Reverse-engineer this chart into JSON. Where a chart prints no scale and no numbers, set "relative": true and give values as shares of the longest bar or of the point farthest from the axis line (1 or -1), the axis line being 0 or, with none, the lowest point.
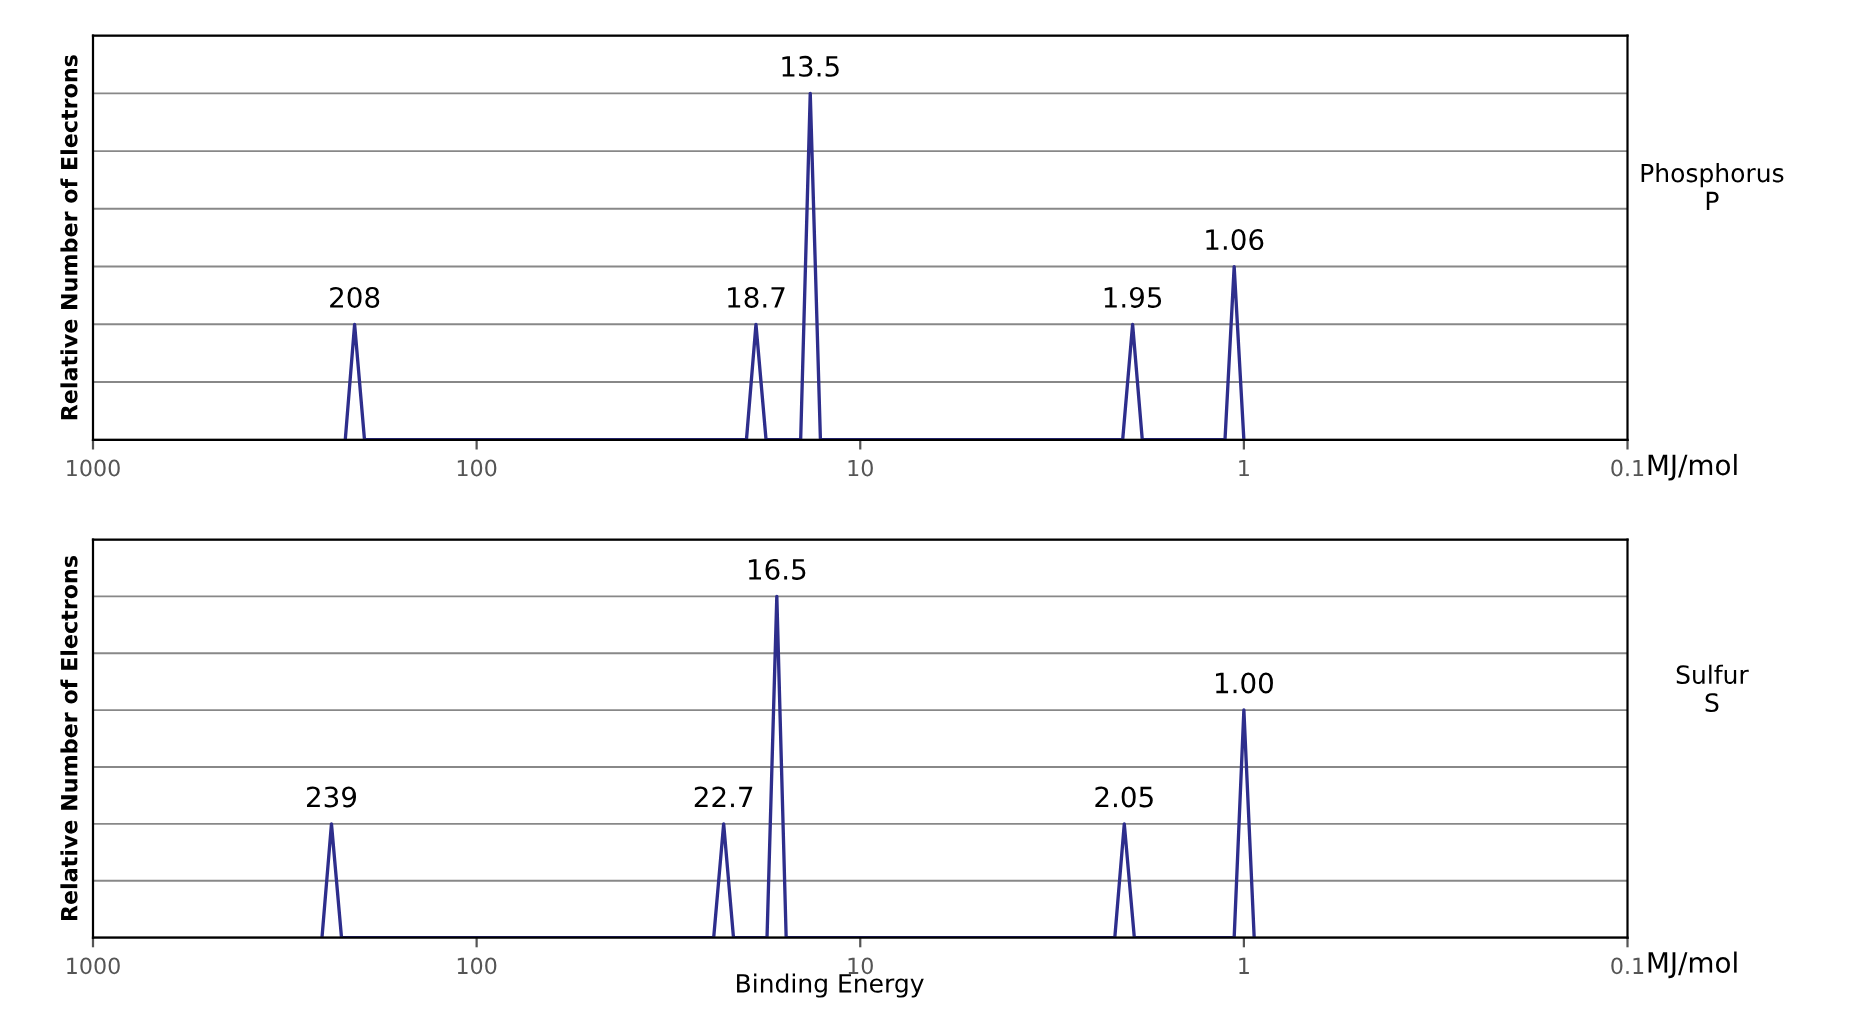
{
  "chart_data": [
    {
      "type": "line",
      "relative": true,
      "xlabel": "MJ/mol",
      "ylabel": "Relative Number of Electrons",
      "log": "x",
      "xlim": [
        1000,
        0.1
      ],
      "xticks": [
        1000,
        100,
        10,
        1,
        0.1
      ],
      "tick_labels": "x",
      "grid": "y",
      "legend": false,
      "series": [
        {
          "color": "#2e2e8c",
          "x": [
            220,
            208,
            196,
            19.8,
            18.7,
            17.6,
            14.3,
            13.5,
            12.7,
            2.07,
            1.95,
            1.84,
            1.12,
            1.06,
            1.0
          ],
          "values": [
            0,
            0.333,
            0,
            0,
            0.333,
            0,
            0,
            1,
            0,
            0,
            0.333,
            0,
            0,
            0.5,
            0
          ]
        }
      ],
      "annotations": [
        {
          "text": "208",
          "x": 208,
          "y": 0.333
        },
        {
          "text": "18.7",
          "x": 18.7,
          "y": 0.333
        },
        {
          "text": "13.5",
          "x": 13.5,
          "y": 1
        },
        {
          "text": "1.95",
          "x": 1.95,
          "y": 0.333
        },
        {
          "text": "1.06",
          "x": 1.06,
          "y": 0.5
        },
        "Phosphorus\nP"
      ]
    },
    {
      "type": "line",
      "relative": true,
      "xlabel": "MJ/mol",
      "ylabel": "Relative Number of Electrons",
      "log": "x",
      "xlim": [
        1000,
        0.1
      ],
      "xticks": [
        1000,
        100,
        10,
        1,
        0.1
      ],
      "tick_labels": "x",
      "grid": "y",
      "legend": false,
      "series": [
        {
          "color": "#2e2e8c",
          "x": [
            253,
            239,
            225,
            24.1,
            22.7,
            21.4,
            17.5,
            16.5,
            15.6,
            2.17,
            2.05,
            1.93,
            1.06,
            1.0,
            0.94
          ],
          "values": [
            0,
            0.333,
            0,
            0,
            0.333,
            0,
            0,
            1,
            0,
            0,
            0.333,
            0,
            0,
            0.667,
            0
          ]
        }
      ],
      "annotations": [
        {
          "text": "239",
          "x": 239,
          "y": 0.333
        },
        {
          "text": "22.7",
          "x": 22.7,
          "y": 0.333
        },
        {
          "text": "16.5",
          "x": 16.5,
          "y": 1
        },
        {
          "text": "2.05",
          "x": 2.05,
          "y": 0.333
        },
        {
          "text": "1.00",
          "x": 1.0,
          "y": 0.667
        },
        "Sulfur\nS",
        "Binding Energy"
      ]
    }
  ]
}
